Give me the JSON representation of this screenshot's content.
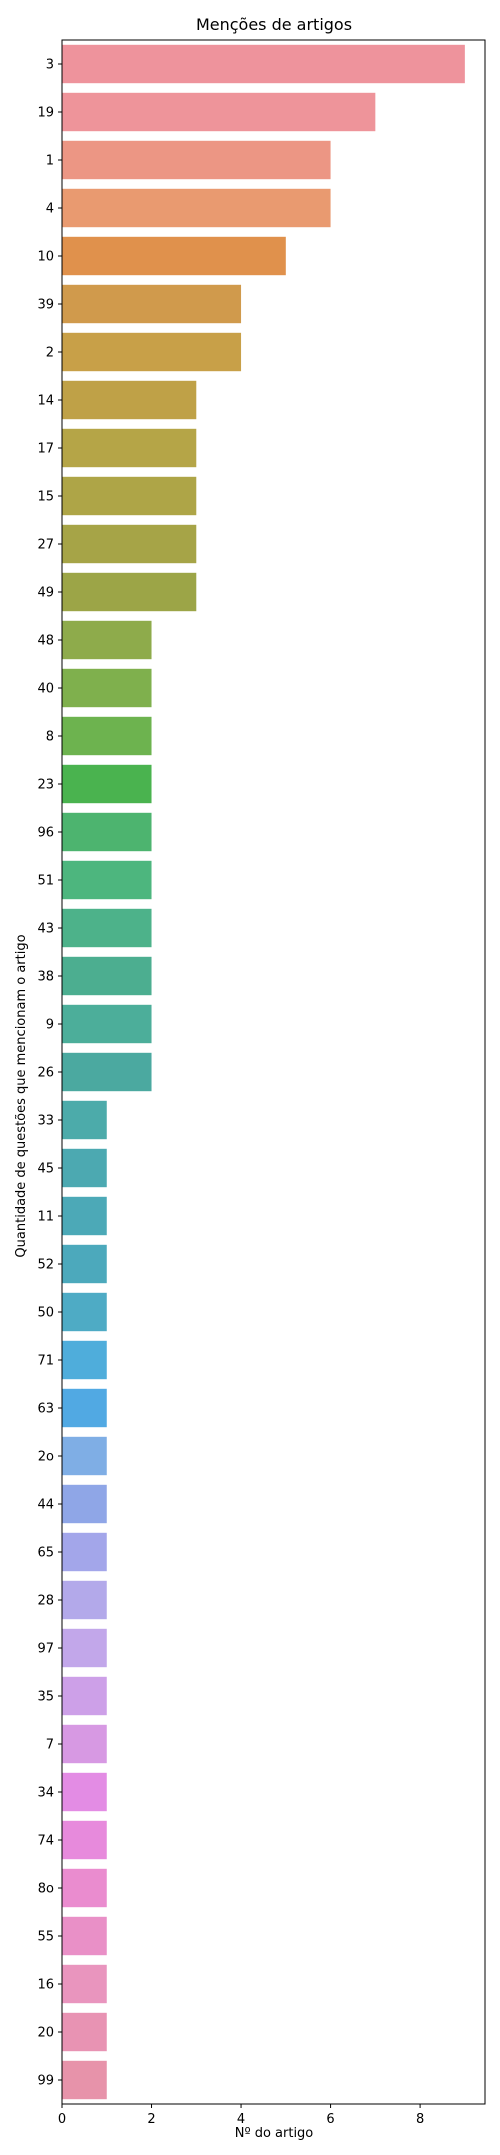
{
  "chart_data": {
    "type": "bar",
    "orientation": "horizontal",
    "title": "Menções de artigos",
    "xlabel": "Nº do artigo",
    "ylabel": "Quantidade de questões que mencionam o artigo",
    "xlim": [
      0,
      9.45
    ],
    "xticks": [
      0,
      2,
      4,
      6,
      8
    ],
    "grid": false,
    "categories": [
      "3",
      "19",
      "1",
      "4",
      "10",
      "39",
      "2",
      "14",
      "17",
      "15",
      "27",
      "49",
      "48",
      "40",
      "8",
      "23",
      "96",
      "51",
      "43",
      "38",
      "9",
      "26",
      "33",
      "45",
      "11",
      "52",
      "50",
      "71",
      "63",
      "2o",
      "44",
      "65",
      "28",
      "97",
      "35",
      "7",
      "34",
      "74",
      "8o",
      "55",
      "16",
      "20",
      "99"
    ],
    "values": [
      9,
      7,
      6,
      6,
      5,
      4,
      4,
      3,
      3,
      3,
      3,
      3,
      2,
      2,
      2,
      2,
      2,
      2,
      2,
      2,
      2,
      2,
      1,
      1,
      1,
      1,
      1,
      1,
      1,
      1,
      1,
      1,
      1,
      1,
      1,
      1,
      1,
      1,
      1,
      1,
      1,
      1,
      1
    ],
    "colors": [
      "#ee939c",
      "#ee949a",
      "#ec9684",
      "#e99a70",
      "#e0914c",
      "#d09a4c",
      "#c8a048",
      "#bfa147",
      "#b5a547",
      "#aea547",
      "#a6a447",
      "#9ca547",
      "#8eab4b",
      "#7fb04d",
      "#6db34f",
      "#4ab34f",
      "#4db46f",
      "#4db67e",
      "#4db28a",
      "#4cae90",
      "#4cae9a",
      "#4ba9a0",
      "#4cabaa",
      "#4ca9b1",
      "#4ca9b7",
      "#4ca9bc",
      "#4eabc5",
      "#4faddb",
      "#51a9e3",
      "#7faee5",
      "#8fa6e7",
      "#a3a6ea",
      "#b3a9ea",
      "#c2a7ea",
      "#cda0e8",
      "#d799e3",
      "#e38ce4",
      "#e78adc",
      "#ea8ccf",
      "#e990c7",
      "#e995be",
      "#e893b3",
      "#e793aa"
    ]
  }
}
